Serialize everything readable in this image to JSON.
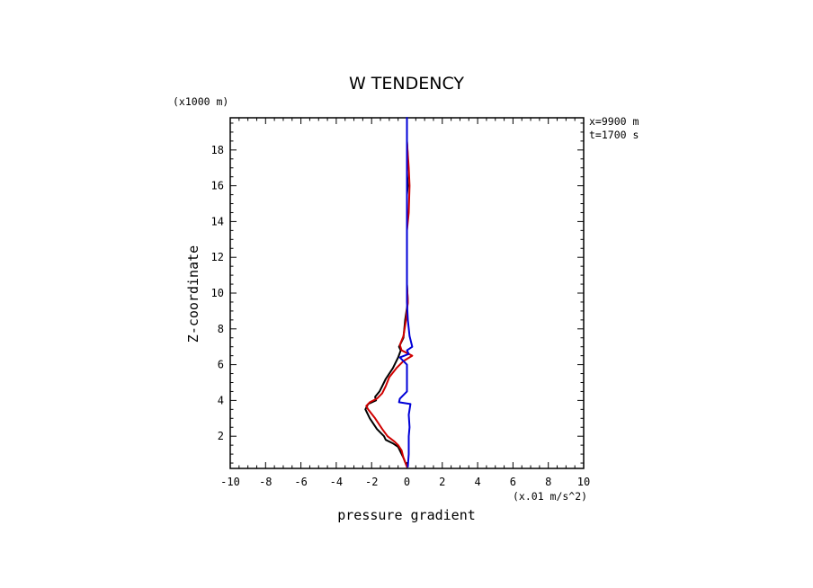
{
  "chart_data": {
    "type": "line",
    "title": "W TENDENCY",
    "xlabel": "pressure gradient",
    "ylabel": "Z-coordinate",
    "x_units": "(x.01 m/s^2)",
    "y_units": "(x1000 m)",
    "annotations": [
      "x=9900 m",
      "t=1700 s"
    ],
    "xlim": [
      -10,
      10
    ],
    "ylim": [
      0.2,
      19.8
    ],
    "xticks": [
      -10,
      -8,
      -6,
      -4,
      -2,
      0,
      2,
      4,
      6,
      8,
      10
    ],
    "xtick_labels": [
      "-10",
      "-8",
      "-6",
      "-4",
      "-2",
      "0",
      "2",
      "4",
      "6",
      "8",
      "10"
    ],
    "yticks": [
      2,
      4,
      6,
      8,
      10,
      12,
      14,
      16,
      18
    ],
    "ytick_labels": [
      "2",
      "4",
      "6",
      "8",
      "10",
      "12",
      "14",
      "16",
      "18"
    ],
    "grid": false,
    "series": [
      {
        "color": "#000000",
        "x": [
          0.0,
          -0.2,
          -0.35,
          -0.5,
          -0.8,
          -1.2,
          -1.3,
          -1.7,
          -2.1,
          -2.35,
          -2.2,
          -1.75,
          -1.8,
          -1.55,
          -1.4,
          -1.2,
          -0.8,
          -0.5,
          -0.35,
          -0.45,
          -0.2,
          -0.1,
          0.05,
          0.0,
          0.0,
          0.0,
          0.0,
          0.0,
          0.05,
          0.0,
          0.05,
          0.0,
          0.0
        ],
        "y": [
          0.3,
          0.8,
          1.1,
          1.4,
          1.6,
          1.8,
          2.0,
          2.4,
          3.0,
          3.5,
          3.8,
          4.0,
          4.2,
          4.5,
          4.8,
          5.2,
          5.8,
          6.4,
          6.8,
          7.0,
          7.5,
          8.5,
          9.5,
          10.5,
          12.0,
          13.5,
          14.5,
          15.5,
          16.0,
          16.8,
          17.5,
          18.5,
          19.6
        ]
      },
      {
        "color": "#d00000",
        "x": [
          0.0,
          -0.2,
          -0.3,
          -0.5,
          -0.7,
          -1.1,
          -1.4,
          -1.8,
          -2.2,
          -2.3,
          -2.1,
          -1.7,
          -1.4,
          -1.2,
          -1.0,
          -0.6,
          -0.2,
          0.3,
          -0.3,
          -0.4,
          -0.2,
          -0.05,
          0.05,
          0.0,
          0.0,
          0.0,
          0.1,
          0.15,
          0.1,
          0.0,
          0.0
        ],
        "y": [
          0.3,
          0.8,
          1.2,
          1.5,
          1.7,
          2.0,
          2.4,
          3.0,
          3.5,
          3.7,
          3.9,
          4.1,
          4.4,
          4.8,
          5.3,
          5.8,
          6.2,
          6.5,
          6.8,
          7.1,
          7.6,
          8.5,
          9.5,
          10.5,
          12.0,
          13.5,
          14.5,
          16.0,
          17.0,
          18.5,
          19.6
        ]
      },
      {
        "color": "#0000d8",
        "x": [
          0.05,
          0.1,
          0.1,
          0.15,
          0.1,
          0.2,
          -0.45,
          -0.4,
          0.0,
          0.0,
          -0.4,
          0.1,
          0.0,
          0.3,
          0.15,
          0.05,
          0.0,
          0.0,
          0.0,
          0.0,
          0.0,
          0.0
        ],
        "y": [
          0.3,
          1.0,
          2.0,
          2.5,
          3.2,
          3.8,
          3.9,
          4.1,
          4.5,
          6.0,
          6.4,
          6.6,
          6.8,
          7.0,
          7.6,
          8.5,
          9.5,
          11.0,
          13.0,
          15.0,
          17.0,
          19.8
        ]
      }
    ]
  }
}
